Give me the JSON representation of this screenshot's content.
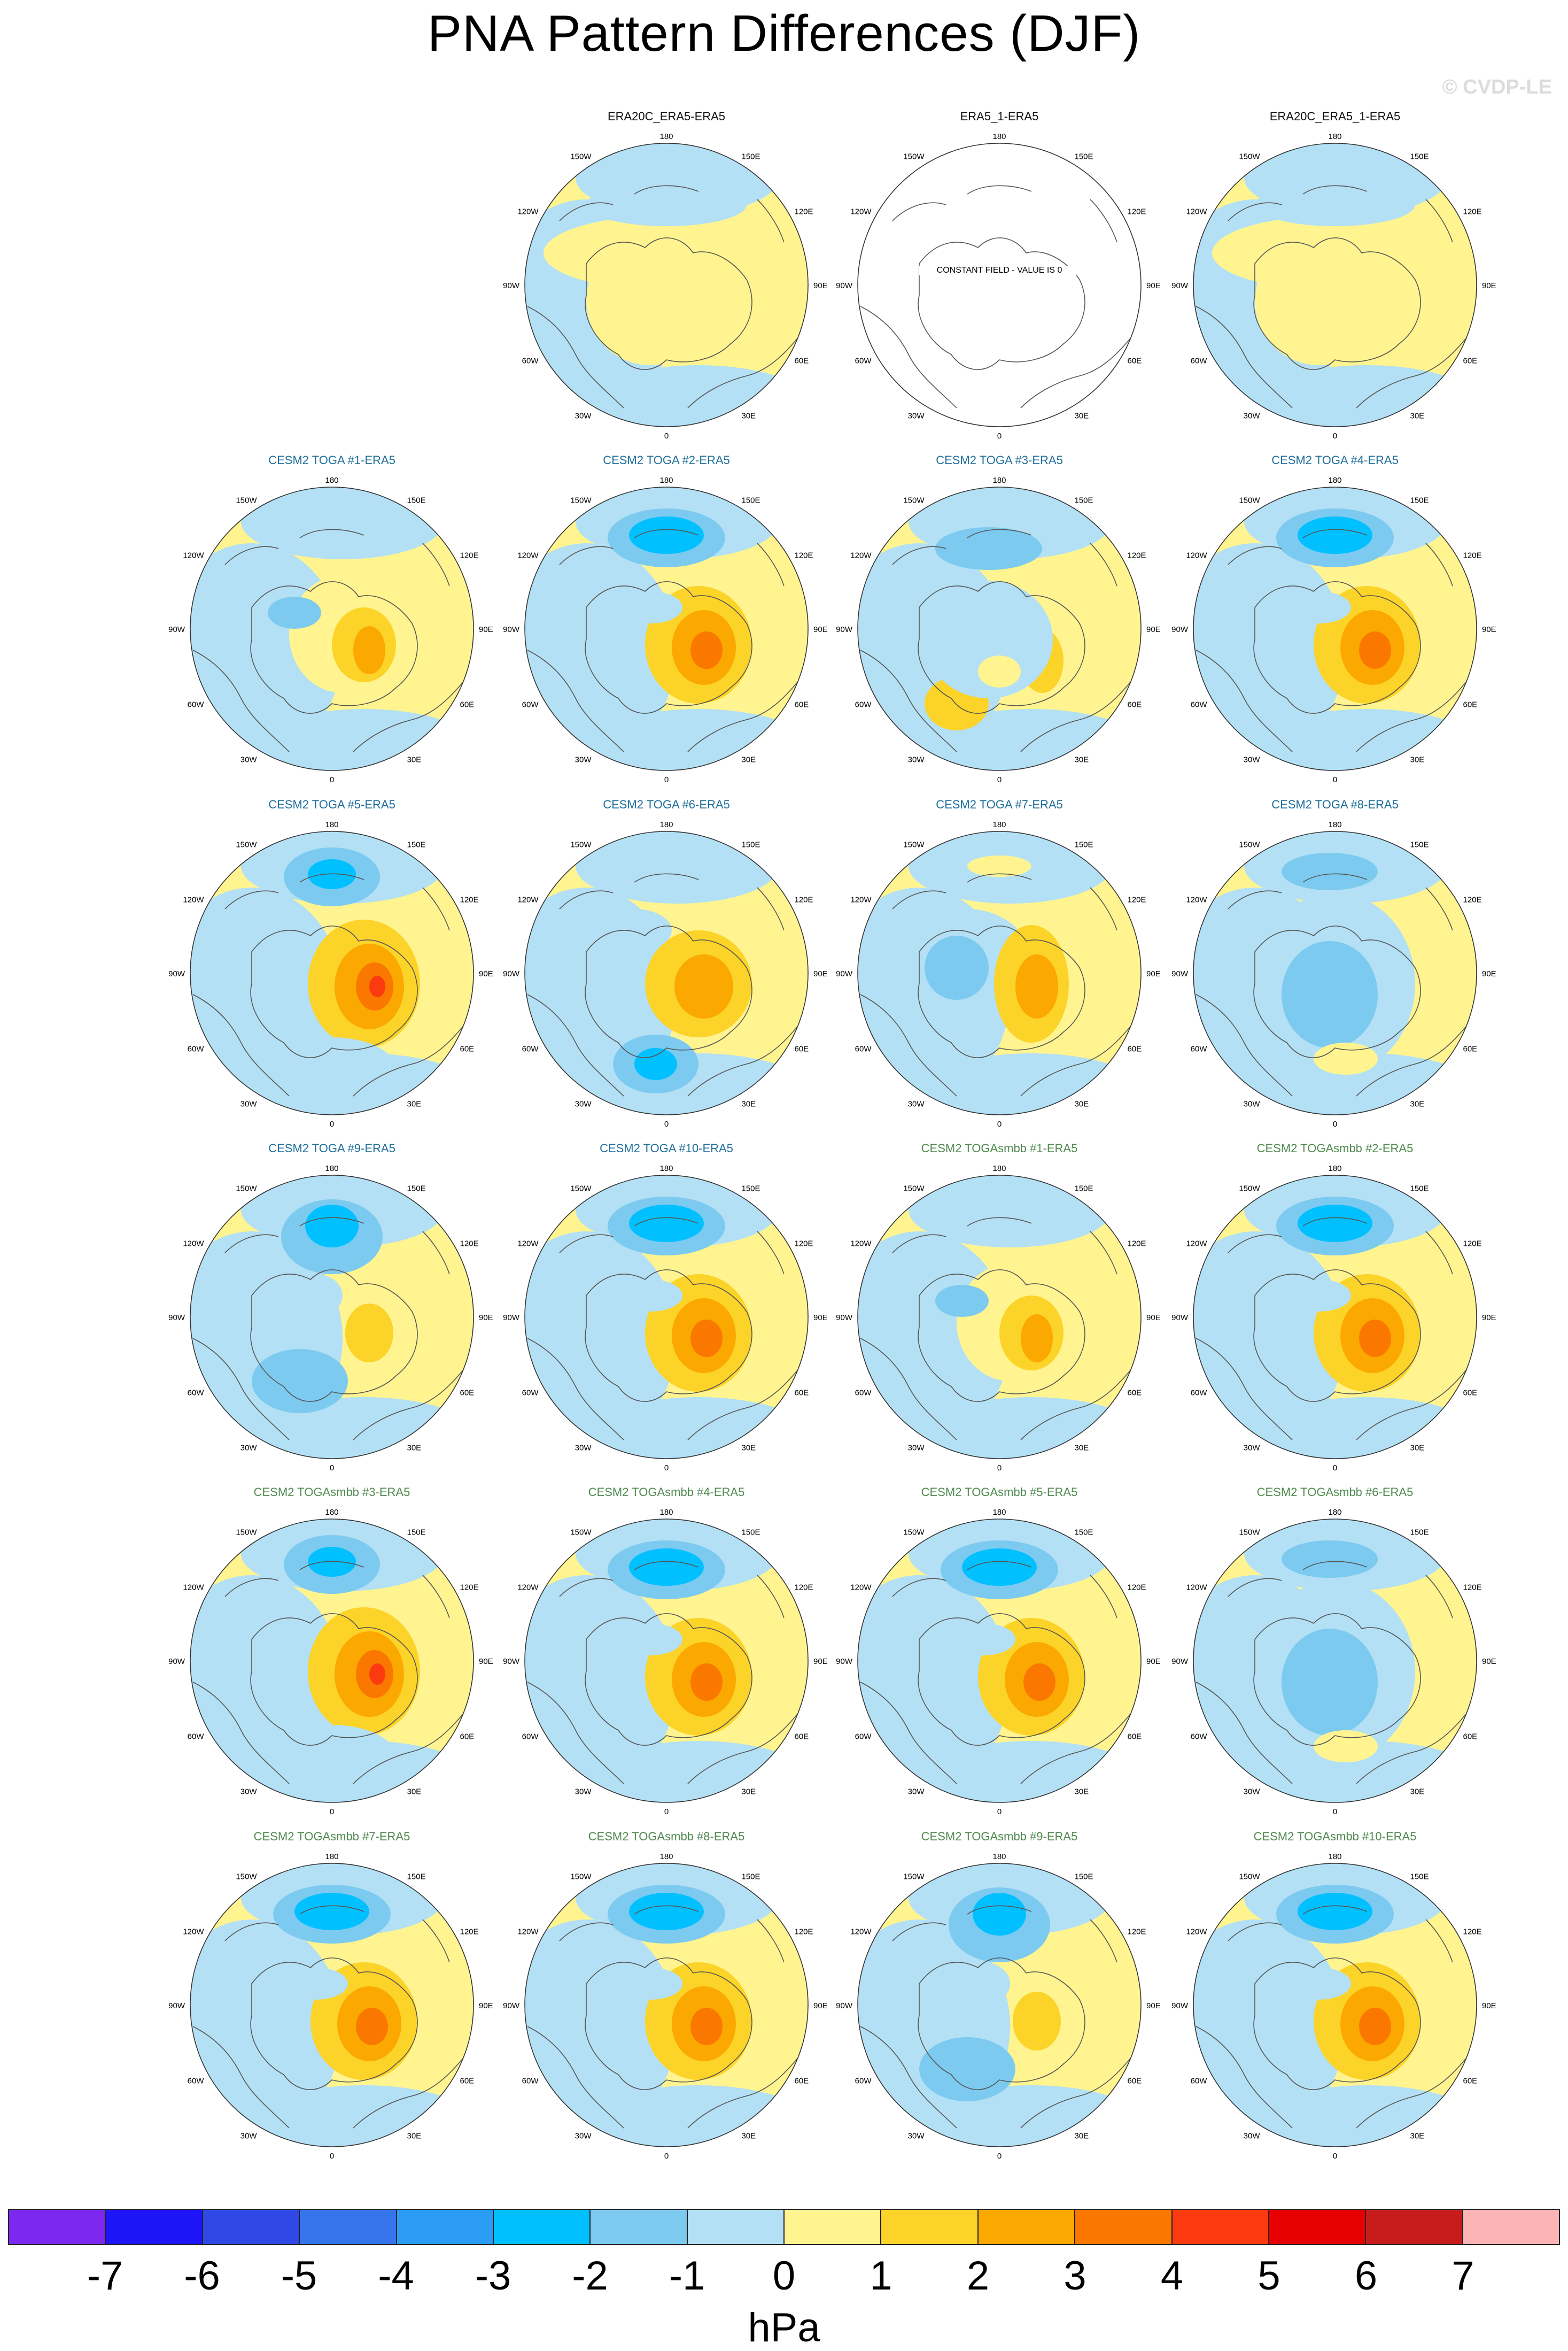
{
  "title": "PNA Pattern Differences (DJF)",
  "watermark": "© CVDP-LE",
  "colors": {
    "scale": [
      "#7c28f0",
      "#1e14f8",
      "#3049e6",
      "#3574ea",
      "#2a9cf4",
      "#00c0ff",
      "#7dcaf0",
      "#b3e0f4",
      "#fff490",
      "#fcd328",
      "#fba800",
      "#fa7800",
      "#fc3a10",
      "#e60000",
      "#c81c1c",
      "#fcb4b4"
    ],
    "ocean_neg": "#b3e0f4",
    "ocean_pos": "#fff490"
  },
  "axis_labels": {
    "top": "180",
    "bottom": "0",
    "left": "90W",
    "right": "90E",
    "ul2": "150W",
    "ur2": "150E",
    "ul1": "120W",
    "ur1": "120E",
    "ll1": "60W",
    "lr1": "60E",
    "ll2": "30W",
    "lr2": "30E"
  },
  "constant_field_label": "CONSTANT FIELD - VALUE IS 0",
  "panels": [
    {
      "title": "ERA20C_ERA5-ERA5",
      "group": "obs",
      "pattern": "a"
    },
    {
      "title": "ERA5_1-ERA5",
      "group": "obs",
      "pattern": "const"
    },
    {
      "title": "ERA20C_ERA5_1-ERA5",
      "group": "obs",
      "pattern": "a"
    },
    {
      "title": "CESM2 TOGA #1-ERA5",
      "group": "toga",
      "pattern": "b"
    },
    {
      "title": "CESM2 TOGA #2-ERA5",
      "group": "toga",
      "pattern": "c"
    },
    {
      "title": "CESM2 TOGA #3-ERA5",
      "group": "toga",
      "pattern": "d"
    },
    {
      "title": "CESM2 TOGA #4-ERA5",
      "group": "toga",
      "pattern": "c"
    },
    {
      "title": "CESM2 TOGA #5-ERA5",
      "group": "toga",
      "pattern": "e"
    },
    {
      "title": "CESM2 TOGA #6-ERA5",
      "group": "toga",
      "pattern": "f"
    },
    {
      "title": "CESM2 TOGA #7-ERA5",
      "group": "toga",
      "pattern": "g"
    },
    {
      "title": "CESM2 TOGA #8-ERA5",
      "group": "toga",
      "pattern": "h"
    },
    {
      "title": "CESM2 TOGA #9-ERA5",
      "group": "toga",
      "pattern": "i"
    },
    {
      "title": "CESM2 TOGA #10-ERA5",
      "group": "toga",
      "pattern": "c"
    },
    {
      "title": "CESM2 TOGAsmbb #1-ERA5",
      "group": "smbb",
      "pattern": "b"
    },
    {
      "title": "CESM2 TOGAsmbb #2-ERA5",
      "group": "smbb",
      "pattern": "c"
    },
    {
      "title": "CESM2 TOGAsmbb #3-ERA5",
      "group": "smbb",
      "pattern": "e"
    },
    {
      "title": "CESM2 TOGAsmbb #4-ERA5",
      "group": "smbb",
      "pattern": "c"
    },
    {
      "title": "CESM2 TOGAsmbb #5-ERA5",
      "group": "smbb",
      "pattern": "c"
    },
    {
      "title": "CESM2 TOGAsmbb #6-ERA5",
      "group": "smbb",
      "pattern": "h"
    },
    {
      "title": "CESM2 TOGAsmbb #7-ERA5",
      "group": "smbb",
      "pattern": "c"
    },
    {
      "title": "CESM2 TOGAsmbb #8-ERA5",
      "group": "smbb",
      "pattern": "c"
    },
    {
      "title": "CESM2 TOGAsmbb #9-ERA5",
      "group": "smbb",
      "pattern": "i"
    },
    {
      "title": "CESM2 TOGAsmbb #10-ERA5",
      "group": "smbb",
      "pattern": "c"
    }
  ],
  "colorbar": {
    "ticks": [
      "-7",
      "-6",
      "-5",
      "-4",
      "-3",
      "-2",
      "-1",
      "0",
      "1",
      "2",
      "3",
      "4",
      "5",
      "6",
      "7"
    ],
    "unit": "hPa"
  }
}
